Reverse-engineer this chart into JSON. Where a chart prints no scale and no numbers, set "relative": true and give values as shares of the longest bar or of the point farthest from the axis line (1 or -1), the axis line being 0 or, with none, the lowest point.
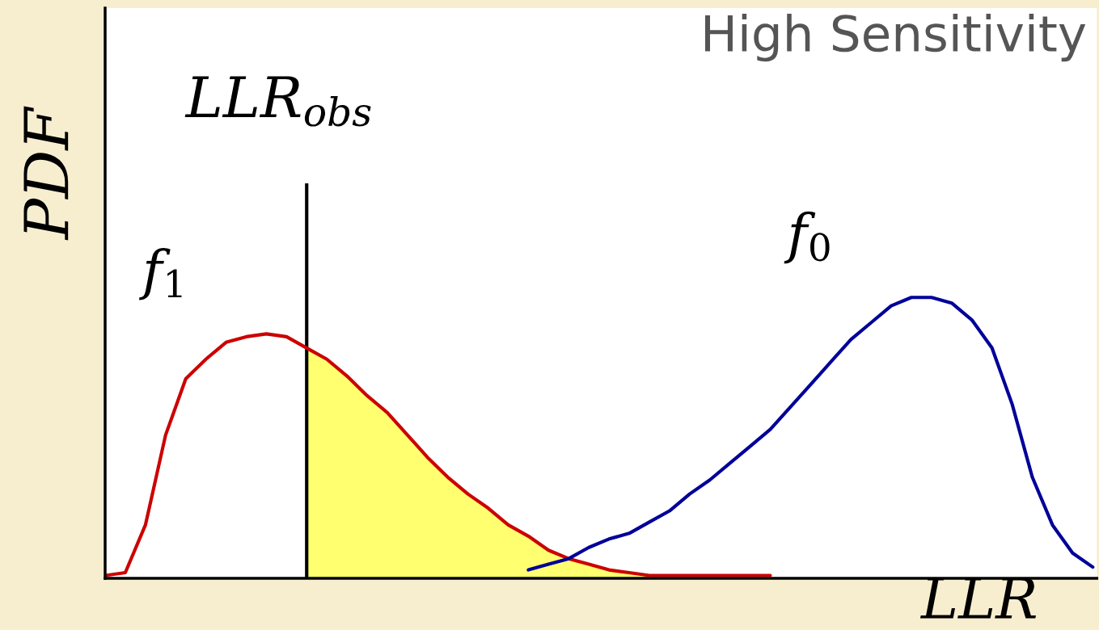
{
  "chart_data": {
    "type": "line",
    "relative": true,
    "title": "High Sensitivity",
    "xlabel": "LLR",
    "ylabel": "PDF",
    "annotations": [
      "LLR$_{obs}$"
    ],
    "categories": [
      null,
      null,
      null,
      null,
      null,
      null,
      null,
      null,
      null,
      null,
      null,
      null,
      null,
      null,
      null,
      null,
      null,
      null,
      null,
      null,
      null,
      null,
      null,
      null,
      null,
      null,
      null,
      null,
      null,
      null,
      null,
      null,
      null,
      null,
      null,
      null,
      null,
      null,
      null,
      null,
      null,
      null,
      null,
      null,
      null,
      null,
      null,
      null,
      null,
      null
    ],
    "series": [
      {
        "type": "area",
        "color": "#ffff70",
        "values": [
          null,
          null,
          null,
          null,
          null,
          null,
          null,
          null,
          null,
          null,
          0.82,
          0.78,
          0.72,
          0.65,
          0.59,
          0.51,
          0.43,
          0.36,
          0.3,
          0.25,
          0.19,
          0.15,
          0.1,
          0.07,
          0.05,
          0.03,
          0.02,
          0.01,
          null,
          null,
          null,
          null,
          null,
          null,
          null,
          null,
          null,
          null,
          null,
          null,
          null,
          null,
          null,
          null,
          null,
          null,
          null,
          null,
          null,
          null
        ]
      },
      {
        "name": "f$_{1}$",
        "color": "#cc0000",
        "values": [
          0.01,
          0.02,
          0.19,
          0.51,
          0.71,
          0.78,
          0.84,
          0.86,
          0.87,
          0.86,
          0.82,
          0.78,
          0.72,
          0.65,
          0.59,
          0.51,
          0.43,
          0.36,
          0.3,
          0.25,
          0.19,
          0.15,
          0.1,
          0.07,
          0.05,
          0.03,
          0.02,
          0.01,
          0.01,
          0.01,
          0.01,
          0.01,
          0.01,
          0.01,
          null,
          null,
          null,
          null,
          null,
          null,
          null,
          null,
          null,
          null,
          null,
          null,
          null,
          null,
          null,
          null
        ]
      },
      {
        "name": "f$_{0}$",
        "color": "#000099",
        "values": [
          null,
          null,
          null,
          null,
          null,
          null,
          null,
          null,
          null,
          null,
          null,
          null,
          null,
          null,
          null,
          null,
          null,
          null,
          null,
          null,
          null,
          0.03,
          0.05,
          0.07,
          0.11,
          0.14,
          0.16,
          0.2,
          0.24,
          0.3,
          0.35,
          0.41,
          0.47,
          0.53,
          0.61,
          0.69,
          0.77,
          0.85,
          0.91,
          0.97,
          1.0,
          1.0,
          0.98,
          0.92,
          0.82,
          0.62,
          0.36,
          0.19,
          0.09,
          0.04
        ]
      }
    ],
    "grid": false,
    "legend": false
  }
}
